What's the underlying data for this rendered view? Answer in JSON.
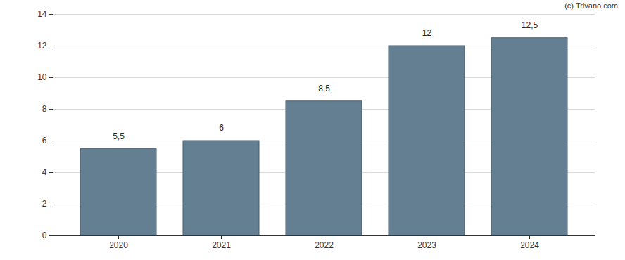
{
  "chart_data": {
    "type": "bar",
    "annotations": [
      "(c) Trivano.com"
    ],
    "categories": [
      "2020",
      "2021",
      "2022",
      "2023",
      "2024"
    ],
    "values": [
      5.5,
      6,
      8.5,
      12,
      12.5
    ],
    "value_labels": [
      "5,5",
      "6",
      "8,5",
      "12",
      "12,5"
    ],
    "data_labels": true,
    "color": "#647f92",
    "ylim": [
      0,
      14
    ],
    "yticks": [
      0,
      2,
      4,
      6,
      8,
      10,
      12,
      14
    ],
    "grid": true
  }
}
